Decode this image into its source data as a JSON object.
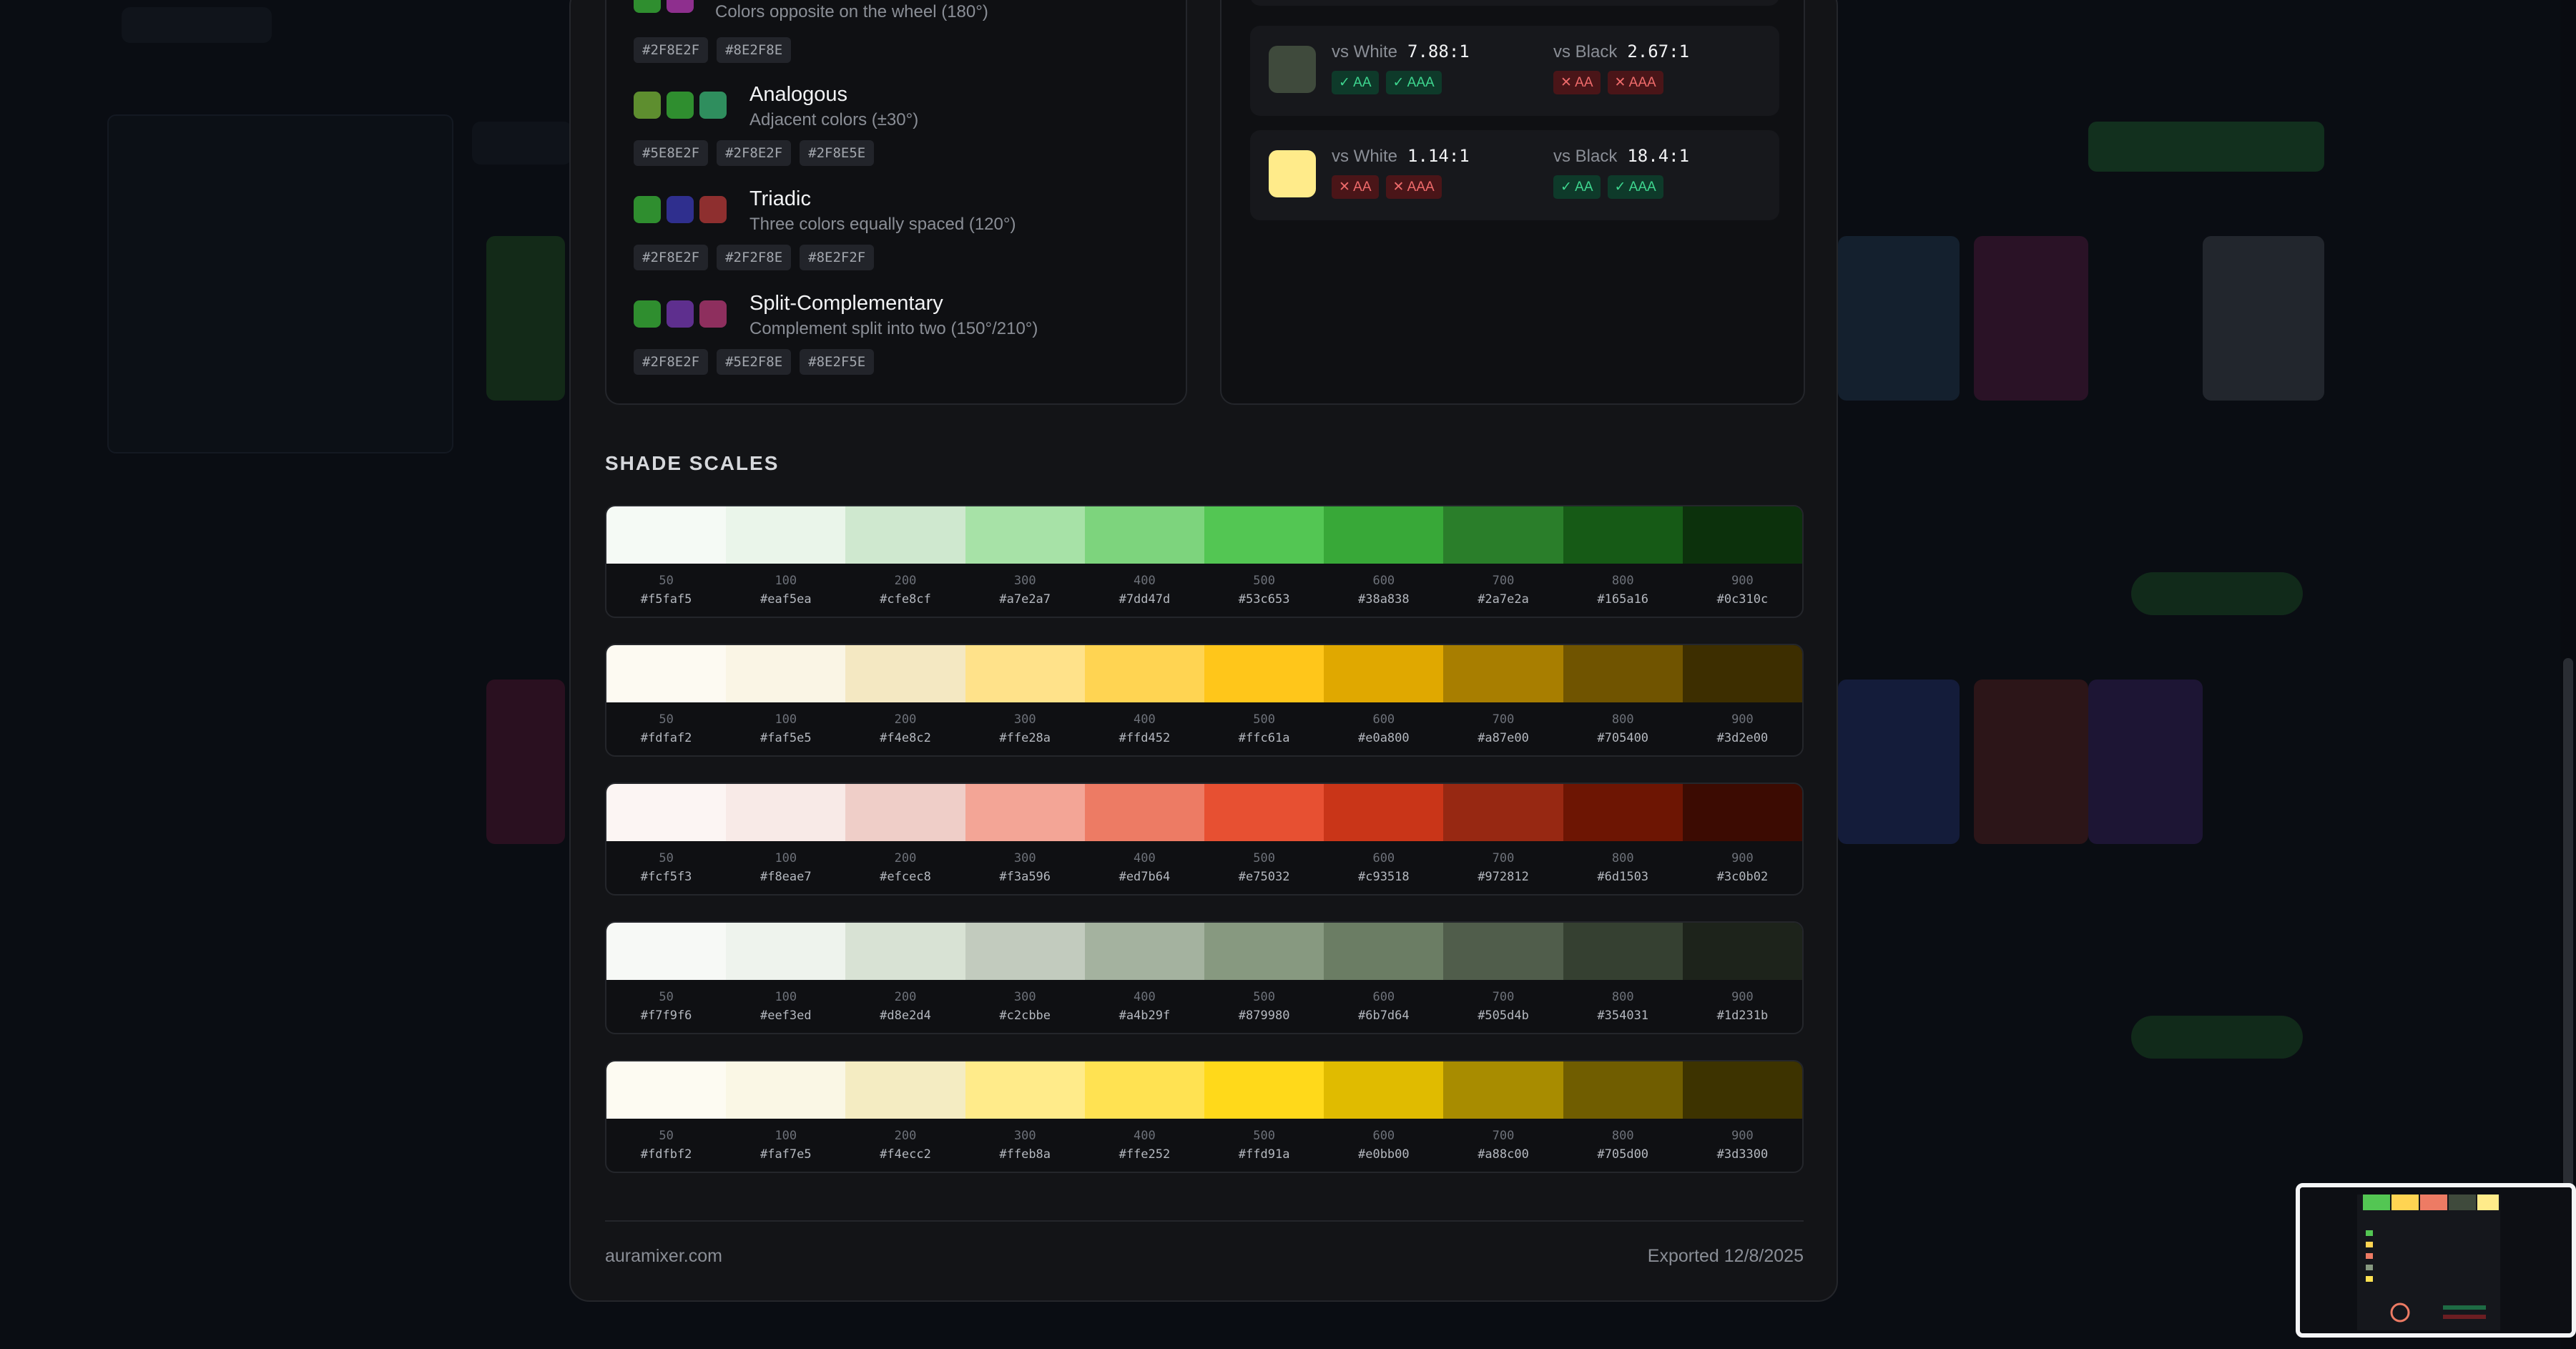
{
  "harmonies": [
    {
      "title": "",
      "description": "Colors opposite on the wheel (180°)",
      "swatches": [
        "#2F8E2F",
        "#8E2F8E"
      ],
      "hexes": [
        "#2F8E2F",
        "#8E2F8E"
      ]
    },
    {
      "title": "Analogous",
      "description": "Adjacent colors (±30°)",
      "swatches": [
        "#5E8E2F",
        "#2F8E2F",
        "#2F8E5E"
      ],
      "hexes": [
        "#5E8E2F",
        "#2F8E2F",
        "#2F8E5E"
      ]
    },
    {
      "title": "Triadic",
      "description": "Three colors equally spaced (120°)",
      "swatches": [
        "#2F8E2F",
        "#2F2F8E",
        "#8E2F2F"
      ],
      "hexes": [
        "#2F8E2F",
        "#2F2F8E",
        "#8E2F2F"
      ]
    },
    {
      "title": "Split-Complementary",
      "description": "Complement split into two (150°/210°)",
      "swatches": [
        "#2F8E2F",
        "#5E2F8E",
        "#8E2F5E"
      ],
      "hexes": [
        "#2F8E2F",
        "#5E2F8E",
        "#8E2F5E"
      ]
    }
  ],
  "contrast": [
    {
      "swatch": "#3f4a3c",
      "white_label": "vs White",
      "white_ratio": "7.88:1",
      "white_badges": [
        "✓ AA",
        "✓ AAA"
      ],
      "white_pass": [
        true,
        true
      ],
      "black_label": "vs Black",
      "black_ratio": "2.67:1",
      "black_badges": [
        "✕ AA",
        "✕ AAA"
      ],
      "black_pass": [
        false,
        false
      ]
    },
    {
      "swatch": "#ffeb8a",
      "white_label": "vs White",
      "white_ratio": "1.14:1",
      "white_badges": [
        "✕ AA",
        "✕ AAA"
      ],
      "white_pass": [
        false,
        false
      ],
      "black_label": "vs Black",
      "black_ratio": "18.4:1",
      "black_badges": [
        "✓ AA",
        "✓ AAA"
      ],
      "black_pass": [
        true,
        true
      ]
    }
  ],
  "section_title": "SHADE SCALES",
  "steps": [
    "50",
    "100",
    "200",
    "300",
    "400",
    "500",
    "600",
    "700",
    "800",
    "900"
  ],
  "scales": [
    [
      "#f5faf5",
      "#eaf5ea",
      "#cfe8cf",
      "#a7e2a7",
      "#7dd47d",
      "#53c653",
      "#38a838",
      "#2a7e2a",
      "#165a16",
      "#0c310c"
    ],
    [
      "#fdfaf2",
      "#faf5e5",
      "#f4e8c2",
      "#ffe28a",
      "#ffd452",
      "#ffc61a",
      "#e0a800",
      "#a87e00",
      "#705400",
      "#3d2e00"
    ],
    [
      "#fcf5f3",
      "#f8eae7",
      "#efcec8",
      "#f3a596",
      "#ed7b64",
      "#e75032",
      "#c93518",
      "#972812",
      "#6d1503",
      "#3c0b02"
    ],
    [
      "#f7f9f6",
      "#eef3ed",
      "#d8e2d4",
      "#c2cbbe",
      "#a4b29f",
      "#879980",
      "#6b7d64",
      "#505d4b",
      "#354031",
      "#1d231b"
    ],
    [
      "#fdfbf2",
      "#faf7e5",
      "#f4ecc2",
      "#ffeb8a",
      "#ffe252",
      "#ffd91a",
      "#e0bb00",
      "#a88c00",
      "#705d00",
      "#3d3300"
    ]
  ],
  "footer": {
    "site": "auramixer.com",
    "exported": "Exported 12/8/2025"
  }
}
